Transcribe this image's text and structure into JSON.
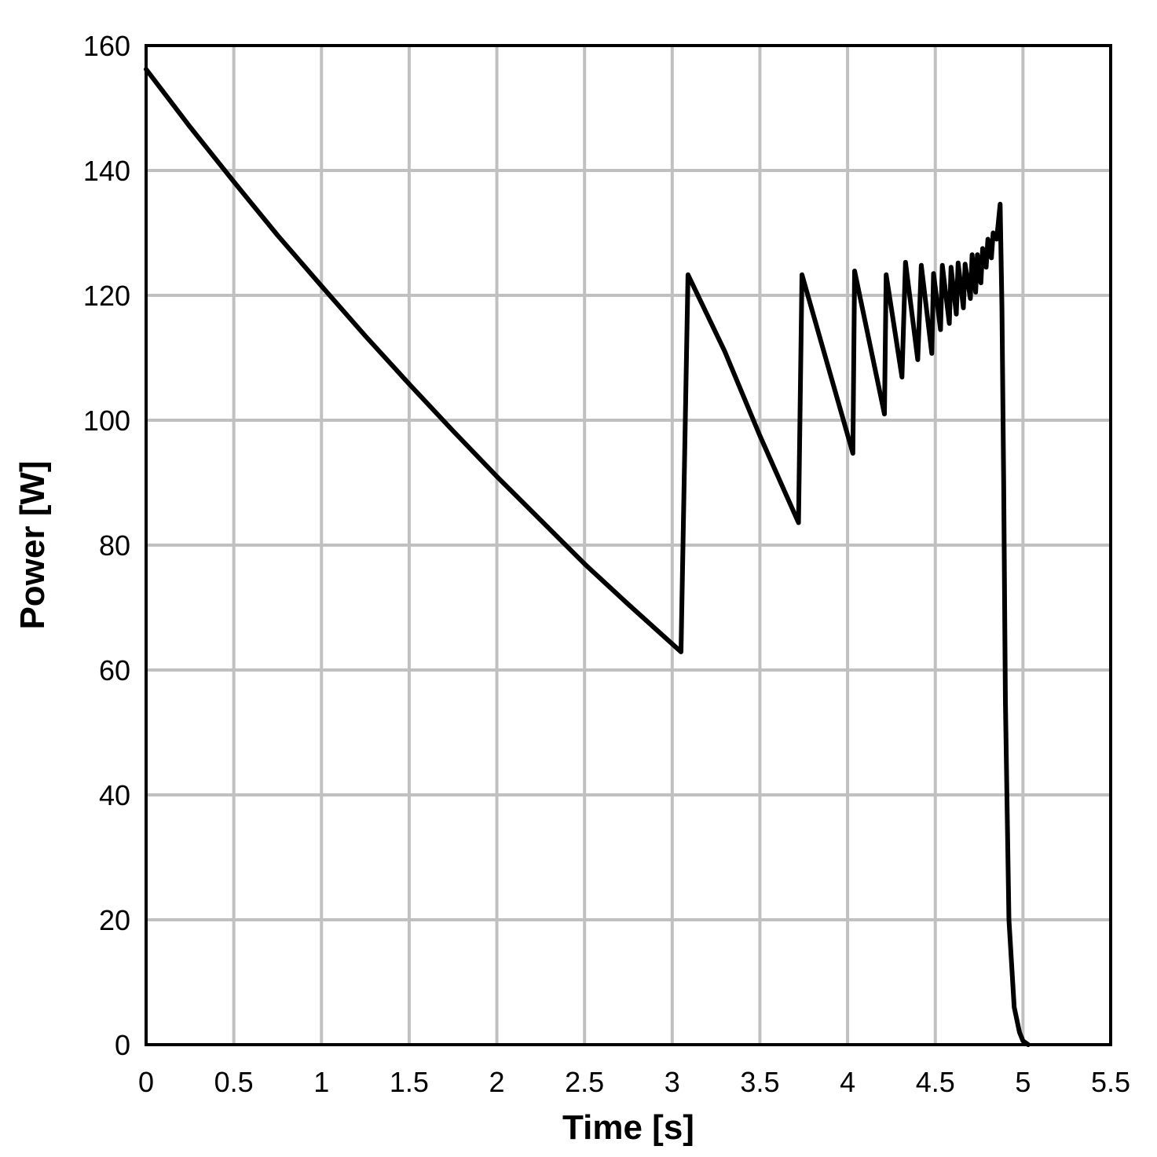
{
  "chart_data": {
    "type": "line",
    "title": "",
    "xlabel": "Time [s]",
    "ylabel": "Power [W]",
    "xlim": [
      0,
      5.5
    ],
    "ylim": [
      0,
      160
    ],
    "x_ticks": [
      0,
      0.5,
      1,
      1.5,
      2,
      2.5,
      3,
      3.5,
      4,
      4.5,
      5,
      5.5
    ],
    "x_tick_labels": [
      "0",
      "0.5",
      "1",
      "1.5",
      "2",
      "2.5",
      "3",
      "3.5",
      "4",
      "4.5",
      "5",
      "5.5"
    ],
    "y_ticks": [
      0,
      20,
      40,
      60,
      80,
      100,
      120,
      140,
      160
    ],
    "y_tick_labels": [
      "0",
      "20",
      "40",
      "60",
      "80",
      "100",
      "120",
      "140",
      "160"
    ],
    "grid": true,
    "legend": null,
    "colors": {
      "line": "#000000",
      "grid": "#c0c0c0",
      "frame": "#000000"
    },
    "series": [
      {
        "name": "Power",
        "x": [
          0,
          0.25,
          0.5,
          0.75,
          1.0,
          1.25,
          1.5,
          1.75,
          2.0,
          2.25,
          2.5,
          2.75,
          3.05,
          3.09,
          3.3,
          3.5,
          3.72,
          3.74,
          3.9,
          4.03,
          4.04,
          4.21,
          4.22,
          4.31,
          4.33,
          4.4,
          4.42,
          4.48,
          4.49,
          4.53,
          4.54,
          4.58,
          4.59,
          4.62,
          4.63,
          4.66,
          4.67,
          4.7,
          4.71,
          4.73,
          4.74,
          4.76,
          4.77,
          4.79,
          4.8,
          4.82,
          4.83,
          4.85,
          4.87,
          4.88,
          4.89,
          4.9,
          4.92,
          4.95,
          4.98,
          5.0,
          5.03
        ],
        "y": [
          156.2,
          147.0,
          138.2,
          129.6,
          121.5,
          113.5,
          105.8,
          98.3,
          91.0,
          84.0,
          77.0,
          70.5,
          62.9,
          123.3,
          111.0,
          97.5,
          83.6,
          123.3,
          107.5,
          94.7,
          123.9,
          101.0,
          123.3,
          106.9,
          125.3,
          109.7,
          124.8,
          110.7,
          123.5,
          114.5,
          124.8,
          115.5,
          124.5,
          117.0,
          125.2,
          118.0,
          125.0,
          119.5,
          126.5,
          120.5,
          126.5,
          122.0,
          127.5,
          124.5,
          129.0,
          126.0,
          130.0,
          129.0,
          134.6,
          118.0,
          90.0,
          55.0,
          20.0,
          6.0,
          2.0,
          0.6,
          0
        ]
      }
    ]
  }
}
